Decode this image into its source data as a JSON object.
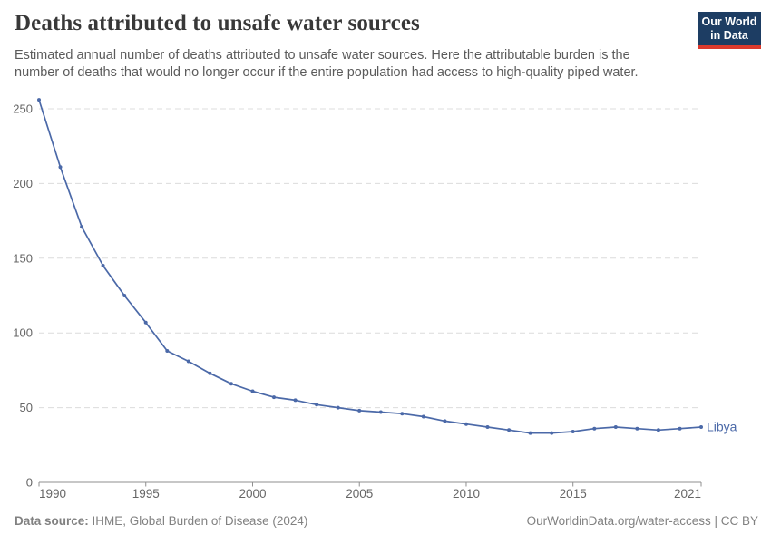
{
  "header": {
    "title": "Deaths attributed to unsafe water sources",
    "subtitle": "Estimated annual number of deaths attributed to unsafe water sources. Here the attributable burden is the number of deaths that would no longer occur if the entire population had access to high-quality piped water.",
    "logo": {
      "line1": "Our World",
      "line2": "in Data",
      "bg_color": "#1d3d63",
      "accent_color": "#dc3a2d"
    }
  },
  "chart_data": {
    "type": "line",
    "title": "Deaths attributed to unsafe water sources",
    "x": [
      1990,
      1991,
      1992,
      1993,
      1994,
      1995,
      1996,
      1997,
      1998,
      1999,
      2000,
      2001,
      2002,
      2003,
      2004,
      2005,
      2006,
      2007,
      2008,
      2009,
      2010,
      2011,
      2012,
      2013,
      2014,
      2015,
      2016,
      2017,
      2018,
      2019,
      2020,
      2021
    ],
    "series": [
      {
        "name": "Libya",
        "color": "#4b69a8",
        "values": [
          256,
          211,
          171,
          145,
          125,
          107,
          88,
          81,
          73,
          66,
          61,
          57,
          55,
          52,
          50,
          48,
          47,
          46,
          44,
          41,
          39,
          37,
          35,
          33,
          33,
          34,
          36,
          37,
          36,
          35,
          36,
          37
        ]
      }
    ],
    "x_ticks": [
      1990,
      1995,
      2000,
      2005,
      2010,
      2015,
      2021
    ],
    "y_ticks": [
      0,
      50,
      100,
      150,
      200,
      250
    ],
    "xlim": [
      1990,
      2021
    ],
    "ylim": [
      0,
      256
    ],
    "xlabel": "",
    "ylabel": "",
    "grid": "horizontal-dashed",
    "legend_position": "end-of-line-label",
    "gridline_color": "#dcdcdc",
    "axis_color": "#8f8f8f",
    "tick_label_color": "#666666"
  },
  "footer": {
    "source_label": "Data source:",
    "source_value": "IHME, Global Burden of Disease (2024)",
    "url": "OurWorldinData.org/water-access",
    "license": "| CC BY"
  }
}
